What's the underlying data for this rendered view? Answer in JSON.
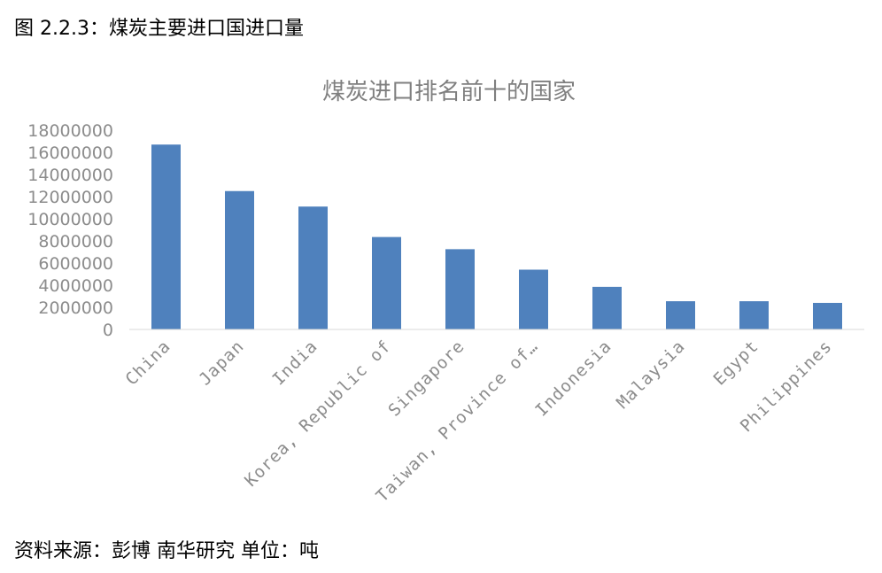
{
  "figure": {
    "caption": "图 2.2.3：煤炭主要进口国进口量",
    "source": "资料来源：彭博 南华研究 单位：吨"
  },
  "colors": {
    "bar": "#4f81bd",
    "text": "#8c8c8c",
    "axis": "#d9d9d9"
  },
  "chart_data": {
    "type": "bar",
    "title": "煤炭进口排名前十的国家",
    "xlabel": "",
    "ylabel": "",
    "categories": [
      "China",
      "Japan",
      "India",
      "Korea, Republic of",
      "Singapore",
      "Taiwan, Province of…",
      "Indonesia",
      "Malaysia",
      "Egypt",
      "Philippines"
    ],
    "values": [
      16700000,
      12500000,
      11100000,
      8350000,
      7250000,
      5400000,
      3850000,
      2550000,
      2550000,
      2400000
    ],
    "ylim": [
      0,
      18000000
    ],
    "yticks": [
      "0",
      "2000000",
      "4000000",
      "6000000",
      "8000000",
      "10000000",
      "12000000",
      "14000000",
      "16000000",
      "18000000"
    ],
    "grid": false,
    "legend": "none"
  }
}
